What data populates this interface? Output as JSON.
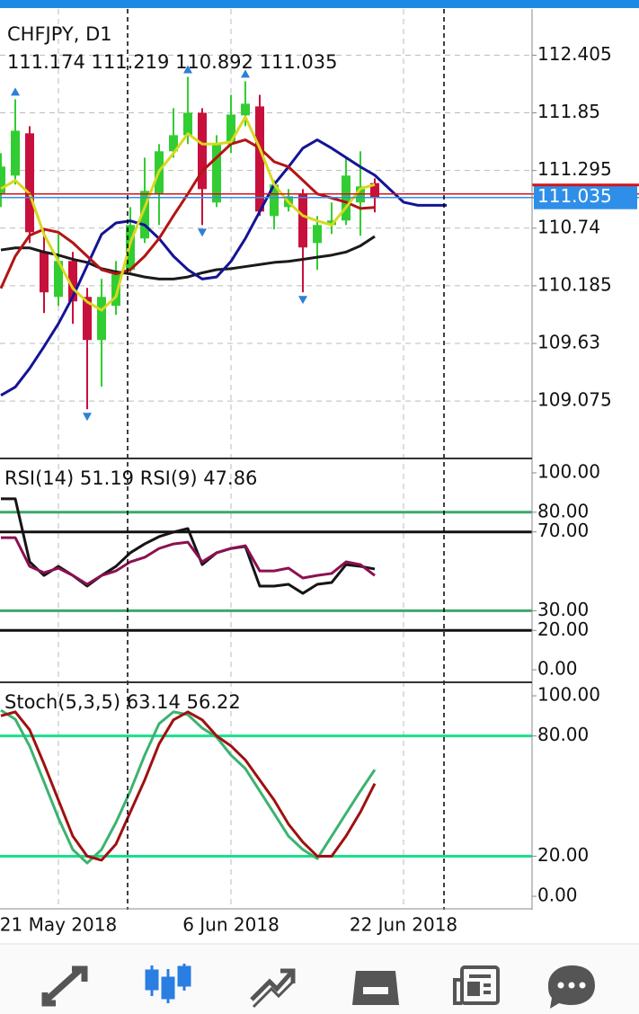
{
  "symbol": "CHFJPY, D1",
  "price_pane": {
    "ylim": [
      108.54,
      112.85
    ],
    "yticks": [
      112.405,
      111.85,
      111.295,
      110.74,
      110.185,
      109.63,
      109.075
    ],
    "up_color": "#32cd32",
    "down_color": "#c8103c",
    "price_line_color": "#d2141e",
    "price_box_color": "#2f8fe8",
    "candles": [
      {
        "o": 111.073,
        "h": 111.462,
        "l": 110.943,
        "c": 111.333
      },
      {
        "o": 111.246,
        "h": 111.981,
        "l": 111.16,
        "c": 111.678
      },
      {
        "o": 111.653,
        "h": 111.722,
        "l": 110.597,
        "c": 110.701
      },
      {
        "o": 110.511,
        "h": 110.727,
        "l": 109.923,
        "c": 110.122
      },
      {
        "o": 110.078,
        "h": 110.684,
        "l": 109.992,
        "c": 110.424
      },
      {
        "o": 110.424,
        "h": 110.511,
        "l": 109.819,
        "c": 110.035
      },
      {
        "o": 110.078,
        "h": 110.165,
        "l": 108.997,
        "c": 109.663
      },
      {
        "o": 109.663,
        "h": 110.251,
        "l": 109.214,
        "c": 110.078
      },
      {
        "o": 109.992,
        "h": 110.424,
        "l": 109.905,
        "c": 110.295
      },
      {
        "o": 110.338,
        "h": 110.943,
        "l": 110.295,
        "c": 110.77
      },
      {
        "o": 110.641,
        "h": 111.419,
        "l": 110.597,
        "c": 111.099
      },
      {
        "o": 111.073,
        "h": 111.549,
        "l": 110.77,
        "c": 111.48
      },
      {
        "o": 111.48,
        "h": 111.895,
        "l": 111.419,
        "c": 111.635
      },
      {
        "o": 111.635,
        "h": 112.197,
        "l": 111.549,
        "c": 111.851
      },
      {
        "o": 111.851,
        "h": 111.895,
        "l": 110.77,
        "c": 111.116
      },
      {
        "o": 110.987,
        "h": 111.635,
        "l": 110.943,
        "c": 111.549
      },
      {
        "o": 111.549,
        "h": 112.024,
        "l": 111.462,
        "c": 111.834
      },
      {
        "o": 111.826,
        "h": 112.154,
        "l": 111.722,
        "c": 111.938
      },
      {
        "o": 111.912,
        "h": 112.024,
        "l": 110.857,
        "c": 110.9
      },
      {
        "o": 110.857,
        "h": 111.203,
        "l": 110.727,
        "c": 111.16
      },
      {
        "o": 110.943,
        "h": 111.116,
        "l": 110.9,
        "c": 111.047
      },
      {
        "o": 111.073,
        "h": 111.116,
        "l": 110.122,
        "c": 110.554
      },
      {
        "o": 110.597,
        "h": 110.857,
        "l": 110.338,
        "c": 110.77
      },
      {
        "o": 110.77,
        "h": 110.987,
        "l": 110.684,
        "c": 110.814
      },
      {
        "o": 110.814,
        "h": 111.419,
        "l": 110.77,
        "c": 111.246
      },
      {
        "o": 110.987,
        "h": 111.48,
        "l": 110.667,
        "c": 111.142
      },
      {
        "o": 111.174,
        "h": 111.219,
        "l": 110.892,
        "c": 111.035
      }
    ],
    "fractals": {
      "up": [
        1,
        13,
        17
      ],
      "down": [
        6,
        14,
        21
      ],
      "color": "#2e7fd6"
    },
    "lines": [
      {
        "color": "#1a1a1a",
        "values": [
          110.53,
          110.55,
          110.55,
          110.51,
          110.48,
          110.44,
          110.41,
          110.35,
          110.32,
          110.3,
          110.27,
          110.25,
          110.25,
          110.27,
          110.31,
          110.34,
          110.35,
          110.37,
          110.39,
          110.41,
          110.42,
          110.44,
          110.46,
          110.48,
          110.51,
          110.57,
          110.66
        ]
      },
      {
        "color": "#141496",
        "values": [
          109.13,
          109.21,
          109.39,
          109.6,
          109.82,
          110.08,
          110.38,
          110.68,
          110.79,
          110.81,
          110.77,
          110.64,
          110.47,
          110.34,
          110.25,
          110.27,
          110.42,
          110.64,
          110.9,
          111.16,
          111.33,
          111.51,
          111.59,
          111.51,
          111.42,
          111.33,
          111.25,
          111.12,
          110.99,
          110.96,
          110.96,
          110.96
        ]
      },
      {
        "color": "#b41414",
        "values": [
          110.16,
          110.47,
          110.67,
          110.73,
          110.7,
          110.6,
          110.47,
          110.34,
          110.3,
          110.34,
          110.47,
          110.64,
          110.86,
          111.07,
          111.29,
          111.42,
          111.55,
          111.59,
          111.51,
          111.38,
          111.33,
          111.2,
          111.07,
          111.03,
          110.99,
          110.93,
          110.94
        ]
      },
      {
        "color": "#d8d820",
        "values": [
          111.12,
          111.2,
          111.07,
          110.68,
          110.42,
          110.16,
          110.03,
          109.95,
          110.08,
          110.6,
          110.94,
          111.29,
          111.46,
          111.65,
          111.55,
          111.55,
          111.57,
          111.81,
          111.51,
          111.16,
          110.99,
          110.86,
          110.81,
          110.77,
          110.94,
          111.12,
          111.16
        ]
      }
    ]
  },
  "rsi_pane": {
    "ylim": [
      -5.9,
      107.3
    ],
    "yticks": [
      {
        "value": 100,
        "label": "100.00"
      },
      {
        "value": 80,
        "label": "80.00"
      },
      {
        "value": 70,
        "label": "70.00"
      },
      {
        "value": 30,
        "label": "30.00"
      },
      {
        "value": 20,
        "label": "20.00"
      },
      {
        "value": 0,
        "label": "0.00"
      }
    ],
    "tick_line_colors": [
      null,
      "#3ca86a",
      "#111111",
      "#3ca86a",
      "#111111",
      null
    ],
    "series": [
      {
        "name": "RSI(14)",
        "color": "#151515",
        "values": [
          86.8,
          86.8,
          54.8,
          47.9,
          52.5,
          47.9,
          42.5,
          47.9,
          52.5,
          59.4,
          63.9,
          67.6,
          69.9,
          71.7,
          53.4,
          59.4,
          61.6,
          62.6,
          42.5,
          42.5,
          43.4,
          38.8,
          43.4,
          44.3,
          53.4,
          52.5,
          51.19
        ]
      },
      {
        "name": "RSI(9)",
        "color": "#8c1050",
        "values": [
          67.1,
          67.1,
          52.5,
          49.3,
          51.6,
          47.9,
          43.4,
          47.9,
          50.2,
          54.8,
          57.1,
          61.6,
          63.9,
          64.8,
          54.8,
          59.4,
          61.6,
          63.0,
          50.2,
          50.2,
          51.6,
          46.6,
          47.9,
          48.9,
          54.8,
          53.4,
          47.86
        ]
      }
    ]
  },
  "stoch_pane": {
    "ylim": [
      -5.8,
      106.3
    ],
    "yticks": [
      {
        "value": 100,
        "label": "100.00"
      },
      {
        "value": 80,
        "label": "80.00"
      },
      {
        "value": 20,
        "label": "20.00"
      },
      {
        "value": 0,
        "label": "0.00"
      }
    ],
    "tick_line_colors": [
      null,
      "#19e08c",
      "#19e08c",
      null
    ],
    "name": "Stoch(5,3,5)",
    "series": [
      {
        "color": "#3cb371",
        "values": [
          92.8,
          88.3,
          74.9,
          57.0,
          39.0,
          23.3,
          16.6,
          23.3,
          36.8,
          52.5,
          70.4,
          86.1,
          92.0,
          90.6,
          83.9,
          79.4,
          70.4,
          63.7,
          52.5,
          41.3,
          30.0,
          23.3,
          18.8,
          30.0,
          41.3,
          52.5,
          63.14
        ]
      },
      {
        "color": "#a01010",
        "values": [
          90,
          92,
          83,
          66,
          48,
          30,
          20,
          18,
          26,
          42,
          58,
          76,
          88,
          92,
          88,
          80,
          75,
          68,
          58,
          48,
          36,
          27,
          20,
          20,
          30,
          42,
          56.22
        ]
      }
    ]
  },
  "x_labels": [
    {
      "value": 4,
      "label": "21 May 2018"
    },
    {
      "value": 16,
      "label": "6 Jun 2018"
    },
    {
      "value": 28,
      "label": "22 Jun 2018"
    }
  ]
}
